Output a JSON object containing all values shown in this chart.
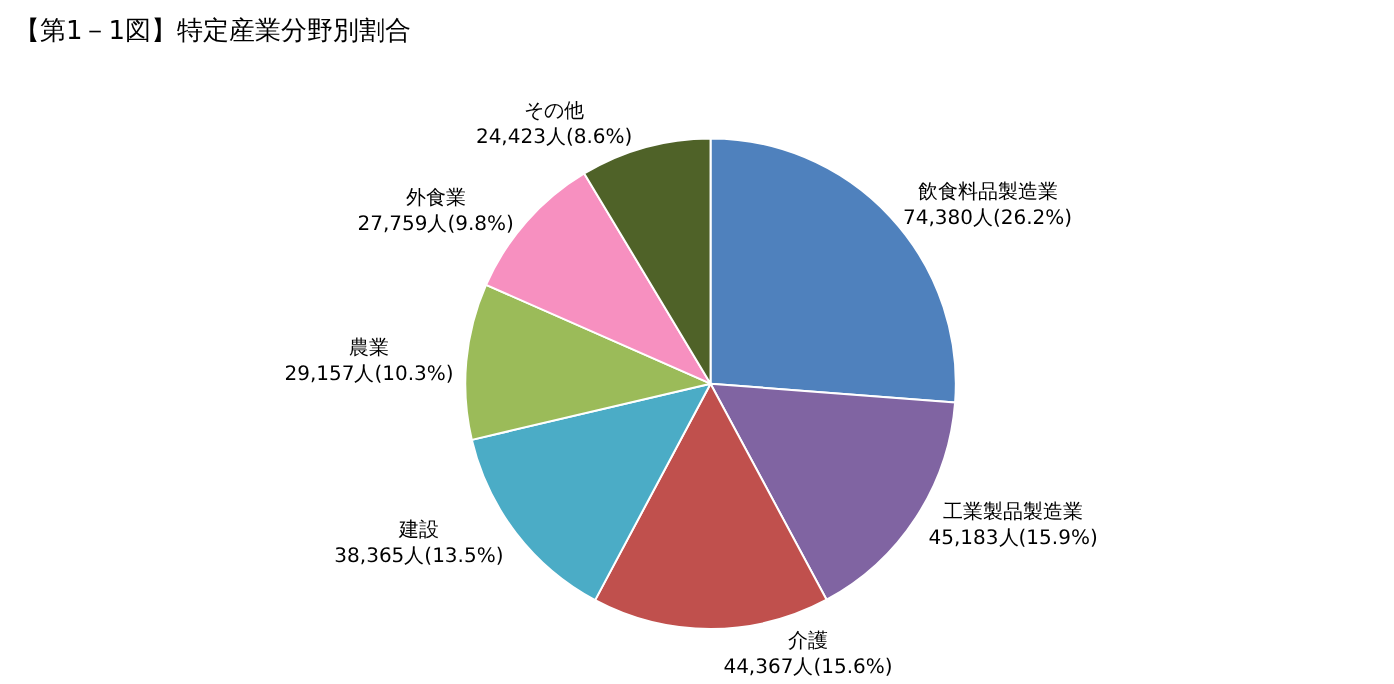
{
  "chart_data": {
    "type": "pie",
    "title": "【第1－1図】特定産業分野別割合",
    "categories": [
      "飲食料品製造業",
      "工業製品製造業",
      "介護",
      "建設",
      "農業",
      "外食業",
      "その他"
    ],
    "values": [
      74380,
      45183,
      44367,
      38365,
      29157,
      27759,
      24423
    ],
    "value_labels": [
      "74,380人(26.2%)",
      "45,183人(15.9%)",
      "44,367人(15.6%)",
      "38,365人(13.5%)",
      "29,157人(10.3%)",
      "27,759人(9.8%)",
      "24,423人(8.6%)"
    ],
    "colors": [
      "#4f81bd",
      "#8064a2",
      "#c0504d",
      "#4bacc6",
      "#9bbb59",
      "#f790c0",
      "#4f6228"
    ],
    "legend": false
  }
}
